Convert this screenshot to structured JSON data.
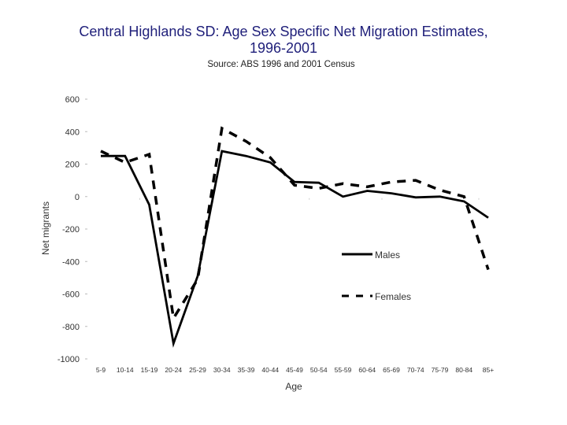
{
  "title_line1": "Central Highlands SD: Age Sex Specific Net Migration Estimates,",
  "title_line2": "1996-2001",
  "subtitle": "Source: ABS 1996 and 2001 Census",
  "chart_data": {
    "type": "line",
    "title": "Central Highlands SD: Age Sex Specific Net Migration Estimates, 1996-2001",
    "subtitle": "Source: ABS 1996 and 2001 Census",
    "xlabel": "Age",
    "ylabel": "Net migrants",
    "ylim": [
      -1000,
      600
    ],
    "yticks": [
      "600",
      "400",
      "200",
      "0",
      "-200",
      "-400",
      "-600",
      "-800",
      "-1000"
    ],
    "categories": [
      "5-9",
      "10-14",
      "15-19",
      "20-24",
      "25-29",
      "30-34",
      "35-39",
      "40-44",
      "45-49",
      "50-54",
      "55-59",
      "60-64",
      "65-69",
      "70-74",
      "75-79",
      "80-84",
      "85+"
    ],
    "series": [
      {
        "name": "Males",
        "style": "solid",
        "color": "#000000",
        "values": [
          250,
          250,
          -50,
          -905,
          -490,
          280,
          250,
          210,
          90,
          85,
          0,
          35,
          20,
          -5,
          0,
          -30,
          -130
        ]
      },
      {
        "name": "Females",
        "style": "dashed",
        "color": "#000000",
        "values": [
          280,
          210,
          260,
          -750,
          -510,
          420,
          340,
          240,
          70,
          50,
          80,
          60,
          90,
          100,
          40,
          0,
          -450
        ]
      }
    ],
    "legend": "right"
  }
}
